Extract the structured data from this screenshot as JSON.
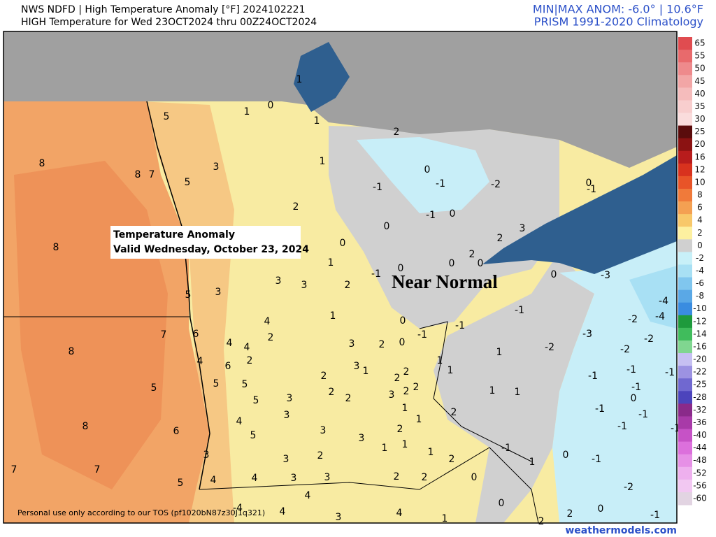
{
  "header": {
    "title": "NWS NDFD | High Temperature Anomaly [°F] 2024102221",
    "subtitle": "HIGH Temperature for Wed 23OCT2024 thru 00Z24OCT2024",
    "stats": "MIN|MAX ANOM: -6.0°  |  10.6°F",
    "climatology": "PRISM 1991-2020 Climatology"
  },
  "map": {
    "annotation": [
      "Temperature Anomaly",
      "Valid Wednesday, October 23, 2024"
    ],
    "callout": "Near Normal",
    "values": [
      1,
      0,
      1,
      5,
      1,
      2,
      3,
      1,
      8,
      8,
      7,
      5,
      0,
      -1,
      -1,
      -2,
      0,
      -1,
      2,
      -1,
      0,
      0,
      3,
      2,
      0,
      8,
      1,
      2,
      0,
      0,
      -1,
      0,
      0,
      -3,
      3,
      3,
      2,
      3,
      5,
      -4,
      -1,
      1,
      4,
      0,
      -1,
      -2,
      -4,
      7,
      6,
      -1,
      -3,
      4,
      2,
      3,
      2,
      0,
      -2,
      8,
      4,
      1,
      -2,
      -2,
      4,
      2,
      6,
      3,
      1,
      1,
      1,
      -1,
      -1,
      2,
      2,
      2,
      2,
      2,
      5,
      5,
      -1,
      2,
      2,
      3,
      1,
      1,
      -1,
      5,
      0,
      5,
      3,
      1,
      2,
      -1,
      -1,
      3,
      4,
      1,
      -1,
      -1,
      8,
      6,
      3,
      2,
      5,
      3,
      1,
      1,
      1,
      -1,
      2,
      3,
      3,
      0,
      -1,
      2,
      1,
      7,
      7,
      3,
      4,
      4,
      3,
      2,
      2,
      0,
      5,
      -2,
      4,
      0,
      -4,
      4,
      4,
      2,
      0,
      -1,
      3,
      1,
      2
    ]
  },
  "legend": {
    "levels": [
      65,
      55,
      50,
      45,
      40,
      35,
      30,
      25,
      20,
      16,
      12,
      10,
      8,
      6,
      4,
      2,
      0,
      -2,
      -4,
      -6,
      -8,
      -10,
      -12,
      -14,
      -16,
      -20,
      -22,
      -25,
      -28,
      -32,
      -36,
      -40,
      -44,
      -48,
      -52,
      -56,
      -60
    ],
    "colors": [
      "#e04c50",
      "#e86a6c",
      "#ee8a8c",
      "#f2a6a6",
      "#f5bcbc",
      "#f8cece",
      "#fadcdc",
      "#5a0c0c",
      "#8b1212",
      "#b81c1c",
      "#d8321e",
      "#e85428",
      "#f07a3a",
      "#f4a052",
      "#f8c86a",
      "#fdf0a0",
      "#d0d0d0",
      "#c8f0f8",
      "#a8e0f4",
      "#80c6ee",
      "#5aa8e6",
      "#3a8ce0",
      "#1e9a3c",
      "#40bc5c",
      "#80d690",
      "#c6c0f2",
      "#9c92e2",
      "#7068d0",
      "#4c44bc",
      "#8a2a8a",
      "#a83aa8",
      "#c652c6",
      "#dc70dc",
      "#e690e6",
      "#eeb0ee",
      "#f2c8f2",
      "#e2d4e2"
    ]
  },
  "footer": {
    "disclaimer": "Personal use only according to our TOS (pf1020bN87z30J1q321)",
    "credit": "weathermodels.com"
  }
}
